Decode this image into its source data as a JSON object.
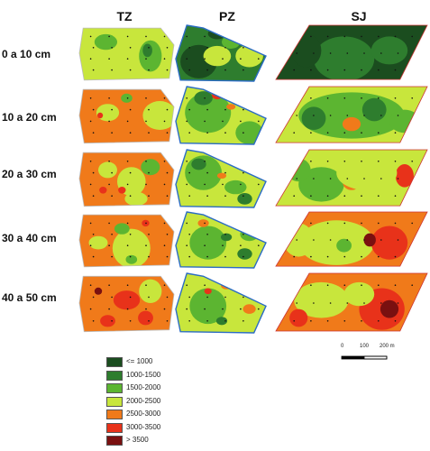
{
  "columns": [
    {
      "key": "tz",
      "title": "TZ"
    },
    {
      "key": "pz",
      "title": "PZ"
    },
    {
      "key": "sj",
      "title": "SJ"
    }
  ],
  "rows": [
    {
      "label": "0 a 10 cm"
    },
    {
      "label": "10 a 20 cm"
    },
    {
      "label": "20 a 30 cm"
    },
    {
      "label": "30 a 40 cm"
    },
    {
      "label": "40 a 50 cm"
    }
  ],
  "legend": [
    {
      "label": "<= 1000",
      "color": "#1b4d1f"
    },
    {
      "label": "1000-1500",
      "color": "#2e7d2e"
    },
    {
      "label": "1500-2000",
      "color": "#5cb531"
    },
    {
      "label": "2000-2500",
      "color": "#c8e63c"
    },
    {
      "label": "2500-3000",
      "color": "#f07a1a"
    },
    {
      "label": "3000-3500",
      "color": "#e8321a"
    },
    {
      "label": "> 3500",
      "color": "#7a1010"
    }
  ],
  "scale": {
    "labels": [
      "0",
      "100",
      "200 m"
    ]
  },
  "maps": {
    "tz": [
      {
        "base": 3,
        "blobs": [
          [
            2,
            0.75,
            0.55,
            0.12,
            0.28
          ],
          [
            2,
            0.28,
            0.3,
            0.12,
            0.14
          ],
          [
            1,
            0.72,
            0.45,
            0.05,
            0.12
          ],
          [
            3,
            0.4,
            0.8,
            0.15,
            0.12
          ]
        ]
      },
      {
        "base": 4,
        "blobs": [
          [
            4,
            0.55,
            0.3,
            0.25,
            0.18
          ],
          [
            4,
            0.4,
            0.75,
            0.2,
            0.15
          ],
          [
            3,
            0.85,
            0.5,
            0.18,
            0.25
          ],
          [
            3,
            0.3,
            0.45,
            0.12,
            0.15
          ],
          [
            2,
            0.5,
            0.2,
            0.06,
            0.08
          ],
          [
            5,
            0.22,
            0.5,
            0.03,
            0.05
          ]
        ]
      },
      {
        "base": 4,
        "blobs": [
          [
            3,
            0.3,
            0.35,
            0.1,
            0.14
          ],
          [
            3,
            0.55,
            0.55,
            0.15,
            0.25
          ],
          [
            2,
            0.75,
            0.3,
            0.1,
            0.14
          ],
          [
            5,
            0.45,
            0.7,
            0.04,
            0.06
          ],
          [
            5,
            0.25,
            0.7,
            0.04,
            0.06
          ],
          [
            3,
            0.6,
            0.85,
            0.12,
            0.12
          ]
        ]
      },
      {
        "base": 4,
        "blobs": [
          [
            3,
            0.55,
            0.65,
            0.2,
            0.35
          ],
          [
            3,
            0.2,
            0.55,
            0.1,
            0.12
          ],
          [
            2,
            0.45,
            0.3,
            0.08,
            0.1
          ],
          [
            2,
            0.55,
            0.85,
            0.06,
            0.08
          ],
          [
            5,
            0.7,
            0.2,
            0.04,
            0.06
          ]
        ]
      },
      {
        "base": 4,
        "blobs": [
          [
            5,
            0.5,
            0.45,
            0.14,
            0.16
          ],
          [
            6,
            0.2,
            0.3,
            0.04,
            0.06
          ],
          [
            5,
            0.3,
            0.8,
            0.08,
            0.1
          ],
          [
            3,
            0.75,
            0.3,
            0.12,
            0.2
          ],
          [
            5,
            0.7,
            0.75,
            0.08,
            0.12
          ]
        ]
      }
    ],
    "pz": [
      {
        "base": 1,
        "blobs": [
          [
            0,
            0.25,
            0.65,
            0.2,
            0.3
          ],
          [
            3,
            0.8,
            0.55,
            0.15,
            0.2
          ],
          [
            3,
            0.45,
            0.55,
            0.15,
            0.18
          ],
          [
            2,
            0.6,
            0.3,
            0.1,
            0.12
          ],
          [
            0,
            0.45,
            0.15,
            0.1,
            0.1
          ],
          [
            4,
            0.85,
            0.25,
            0.06,
            0.08
          ]
        ]
      },
      {
        "base": 3,
        "blobs": [
          [
            2,
            0.35,
            0.45,
            0.25,
            0.35
          ],
          [
            2,
            0.8,
            0.8,
            0.15,
            0.2
          ],
          [
            5,
            0.45,
            0.15,
            0.06,
            0.07
          ],
          [
            1,
            0.3,
            0.2,
            0.1,
            0.12
          ],
          [
            4,
            0.6,
            0.35,
            0.05,
            0.05
          ]
        ]
      },
      {
        "base": 3,
        "blobs": [
          [
            2,
            0.3,
            0.4,
            0.2,
            0.3
          ],
          [
            1,
            0.75,
            0.85,
            0.08,
            0.1
          ],
          [
            1,
            0.25,
            0.25,
            0.08,
            0.1
          ],
          [
            4,
            0.5,
            0.45,
            0.05,
            0.05
          ],
          [
            2,
            0.65,
            0.65,
            0.12,
            0.12
          ]
        ]
      },
      {
        "base": 3,
        "blobs": [
          [
            2,
            0.35,
            0.55,
            0.2,
            0.3
          ],
          [
            1,
            0.75,
            0.75,
            0.08,
            0.1
          ],
          [
            4,
            0.3,
            0.2,
            0.06,
            0.07
          ],
          [
            1,
            0.55,
            0.45,
            0.06,
            0.07
          ],
          [
            2,
            0.8,
            0.4,
            0.1,
            0.12
          ]
        ]
      },
      {
        "base": 3,
        "blobs": [
          [
            2,
            0.35,
            0.55,
            0.2,
            0.3
          ],
          [
            4,
            0.55,
            0.2,
            0.06,
            0.07
          ],
          [
            4,
            0.8,
            0.6,
            0.07,
            0.08
          ],
          [
            1,
            0.5,
            0.8,
            0.06,
            0.07
          ],
          [
            5,
            0.35,
            0.3,
            0.04,
            0.05
          ]
        ]
      }
    ],
    "sj": [
      {
        "base": 0,
        "blobs": [
          [
            1,
            0.45,
            0.6,
            0.2,
            0.4
          ],
          [
            1,
            0.75,
            0.45,
            0.12,
            0.25
          ],
          [
            0,
            0.2,
            0.45,
            0.1,
            0.3
          ]
        ]
      },
      {
        "base": 3,
        "blobs": [
          [
            2,
            0.5,
            0.5,
            0.35,
            0.4
          ],
          [
            1,
            0.25,
            0.55,
            0.08,
            0.2
          ],
          [
            1,
            0.65,
            0.4,
            0.08,
            0.2
          ],
          [
            4,
            0.5,
            0.65,
            0.06,
            0.12
          ],
          [
            2,
            0.85,
            0.6,
            0.1,
            0.2
          ]
        ]
      },
      {
        "base": 3,
        "blobs": [
          [
            2,
            0.3,
            0.6,
            0.15,
            0.3
          ],
          [
            4,
            0.5,
            0.55,
            0.06,
            0.15
          ],
          [
            5,
            0.85,
            0.45,
            0.06,
            0.2
          ],
          [
            3,
            0.6,
            0.4,
            0.2,
            0.3
          ],
          [
            2,
            0.15,
            0.35,
            0.08,
            0.2
          ]
        ]
      },
      {
        "base": 4,
        "blobs": [
          [
            3,
            0.4,
            0.55,
            0.25,
            0.4
          ],
          [
            5,
            0.75,
            0.55,
            0.12,
            0.3
          ],
          [
            3,
            0.15,
            0.5,
            0.1,
            0.3
          ],
          [
            6,
            0.62,
            0.5,
            0.04,
            0.12
          ],
          [
            2,
            0.45,
            0.6,
            0.05,
            0.12
          ]
        ]
      },
      {
        "base": 4,
        "blobs": [
          [
            3,
            0.3,
            0.45,
            0.18,
            0.3
          ],
          [
            5,
            0.7,
            0.6,
            0.15,
            0.35
          ],
          [
            6,
            0.75,
            0.6,
            0.06,
            0.15
          ],
          [
            3,
            0.55,
            0.35,
            0.1,
            0.2
          ],
          [
            5,
            0.15,
            0.75,
            0.06,
            0.15
          ]
        ]
      }
    ]
  }
}
